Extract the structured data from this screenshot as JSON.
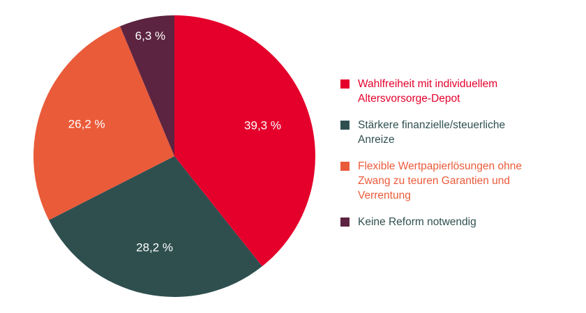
{
  "chart_data": {
    "type": "pie",
    "slices": [
      {
        "label": "39,3 %",
        "value": 39.3,
        "color": "#e4002b",
        "legend": "Wahlfreiheit mit individuellem\nAltersvorsorge-Depot",
        "legend_color": "#e4002b"
      },
      {
        "label": "28,2 %",
        "value": 28.2,
        "color": "#2f4f4f",
        "legend": "Stärkere finanzielle/steuerliche\nAnreize",
        "legend_color": "#2f4f4f"
      },
      {
        "label": "26,2 %",
        "value": 26.2,
        "color": "#ea5b3a",
        "legend": "Flexible Wertpapierlösungen ohne\nZwang zu teuren Garantien und\nVerrentung",
        "legend_color": "#ea5b3a"
      },
      {
        "label": "6,3 %",
        "value": 6.3,
        "color": "#5c2440",
        "legend": "Keine Reform notwendig",
        "legend_color": "#2f4f4f"
      }
    ],
    "start_angle": "12 o'clock",
    "direction": "clockwise",
    "legend_position": "right"
  }
}
